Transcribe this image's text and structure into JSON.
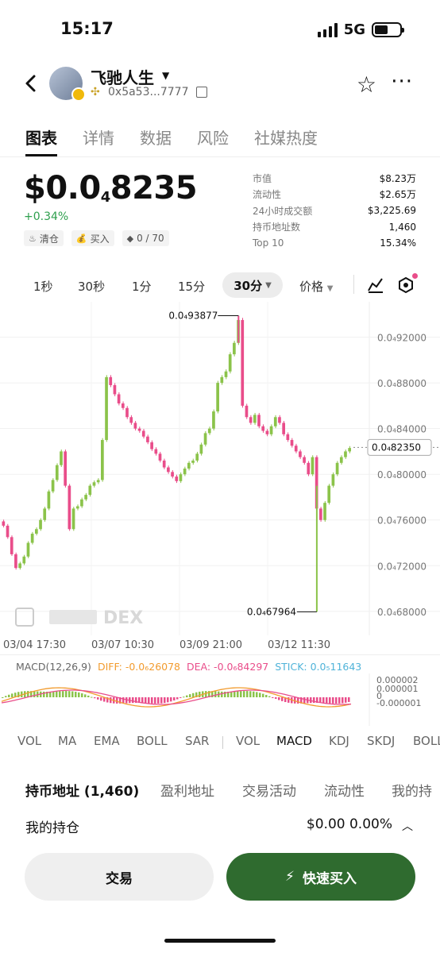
{
  "status_bar": {
    "time": "15:17",
    "network": "5G"
  },
  "token": {
    "name": "飞驰人生",
    "address": "0x5a53...7777",
    "chain_icon": "bnb-chain-icon"
  },
  "tabs": [
    {
      "label": "图表",
      "active": true
    },
    {
      "label": "详情"
    },
    {
      "label": "数据"
    },
    {
      "label": "风险"
    },
    {
      "label": "社媒热度"
    }
  ],
  "price": {
    "prefix": "$0.0",
    "sub": "4",
    "main": "8235",
    "change": "+0.34%"
  },
  "chips": [
    {
      "icon": "chef-hat-icon",
      "glyph": "♨",
      "label": "清仓"
    },
    {
      "icon": "money-bag-icon",
      "glyph": "💰",
      "label": "买入"
    },
    {
      "icon": "diamond-icon",
      "glyph": "◆",
      "label": "0 / 70"
    }
  ],
  "stats": [
    {
      "k": "市值",
      "v": "$8.23万"
    },
    {
      "k": "流动性",
      "v": "$2.65万"
    },
    {
      "k": "24小时成交额",
      "v": "$3,225.69"
    },
    {
      "k": "持币地址数",
      "v": "1,460"
    },
    {
      "k": "Top 10",
      "v": "15.34%"
    }
  ],
  "intervals": [
    "1秒",
    "30秒",
    "1分",
    "15分"
  ],
  "interval_selected": "30分",
  "price_selector": "价格",
  "chart_data": {
    "type": "candlestick",
    "y_ticks": [
      "0.0₄92000",
      "0.0₄88000",
      "0.0₄84000",
      "0.0₄80000",
      "0.0₄76000",
      "0.0₄72000",
      "0.0₄68000"
    ],
    "ylim": [
      6.66e-05,
      9.44e-05
    ],
    "high_label": "0.0₄93877",
    "low_label": "0.0₄67964",
    "high_value": 9.3877e-05,
    "low_value": 6.7964e-05,
    "current_label": "0.0₄82350",
    "current_value": 8.235e-05,
    "x_ticks": [
      "03/04 17:30",
      "03/07 10:30",
      "03/09 21:00",
      "03/12 11:30"
    ],
    "up_color": "#8bc34a",
    "down_color": "#e94d8a",
    "closes": [
      7.55e-05,
      7.45e-05,
      7.3e-05,
      7.18e-05,
      7.22e-05,
      7.28e-05,
      7.4e-05,
      7.48e-05,
      7.52e-05,
      7.6e-05,
      7.7e-05,
      7.85e-05,
      7.95e-05,
      8.08e-05,
      8.2e-05,
      7.9e-05,
      7.52e-05,
      7.7e-05,
      7.72e-05,
      7.78e-05,
      7.82e-05,
      7.9e-05,
      7.93e-05,
      7.95e-05,
      8.3e-05,
      8.85e-05,
      8.78e-05,
      8.7e-05,
      8.62e-05,
      8.58e-05,
      8.5e-05,
      8.45e-05,
      8.4e-05,
      8.38e-05,
      8.33e-05,
      8.28e-05,
      8.22e-05,
      8.18e-05,
      8.12e-05,
      8.06e-05,
      8.02e-05,
      7.98e-05,
      7.94e-05,
      8e-05,
      8.05e-05,
      8.1e-05,
      8.12e-05,
      8.18e-05,
      8.26e-05,
      8.36e-05,
      8.4e-05,
      8.55e-05,
      8.8e-05,
      8.85e-05,
      8.9e-05,
      9.05e-05,
      9.15e-05,
      9.35e-05,
      8.6e-05,
      8.5e-05,
      8.45e-05,
      8.52e-05,
      8.42e-05,
      8.38e-05,
      8.35e-05,
      8.42e-05,
      8.5e-05,
      8.45e-05,
      8.35e-05,
      8.3e-05,
      8.25e-05,
      8.2e-05,
      8.15e-05,
      8.1e-05,
      8e-05,
      8.15e-05,
      7.7e-05,
      7.6e-05,
      7.75e-05,
      7.9e-05,
      8e-05,
      8.1e-05,
      8.15e-05,
      8.2e-05,
      8.23e-05
    ]
  },
  "macd": {
    "label": "MACD(12,26,9)",
    "diff": "DIFF: -0.0₆26078",
    "dea": "DEA: -0.0₆84297",
    "stick": "STICK: 0.0₅11643",
    "ticks": [
      "0.000002",
      "0.000001",
      "0",
      "-0.000001"
    ],
    "diff_color": "#f29b2e",
    "dea_color": "#e94d8a",
    "stick_color": "#4fb3d9"
  },
  "indicator_tabs": [
    "VOL",
    "MA",
    "EMA",
    "BOLL",
    "SAR",
    "VOL",
    "MACD",
    "KDJ",
    "SKDJ",
    "BOLL"
  ],
  "indicator_active_index": 6,
  "sub_tabs": [
    "持币地址 (1,460)",
    "盈利地址",
    "交易活动",
    "流动性",
    "我的持"
  ],
  "holding": {
    "label": "我的持仓",
    "value": "$0.00 0.00%"
  },
  "buttons": {
    "trade": "交易",
    "quick_buy": "快速买入"
  },
  "watermark": "DEX"
}
